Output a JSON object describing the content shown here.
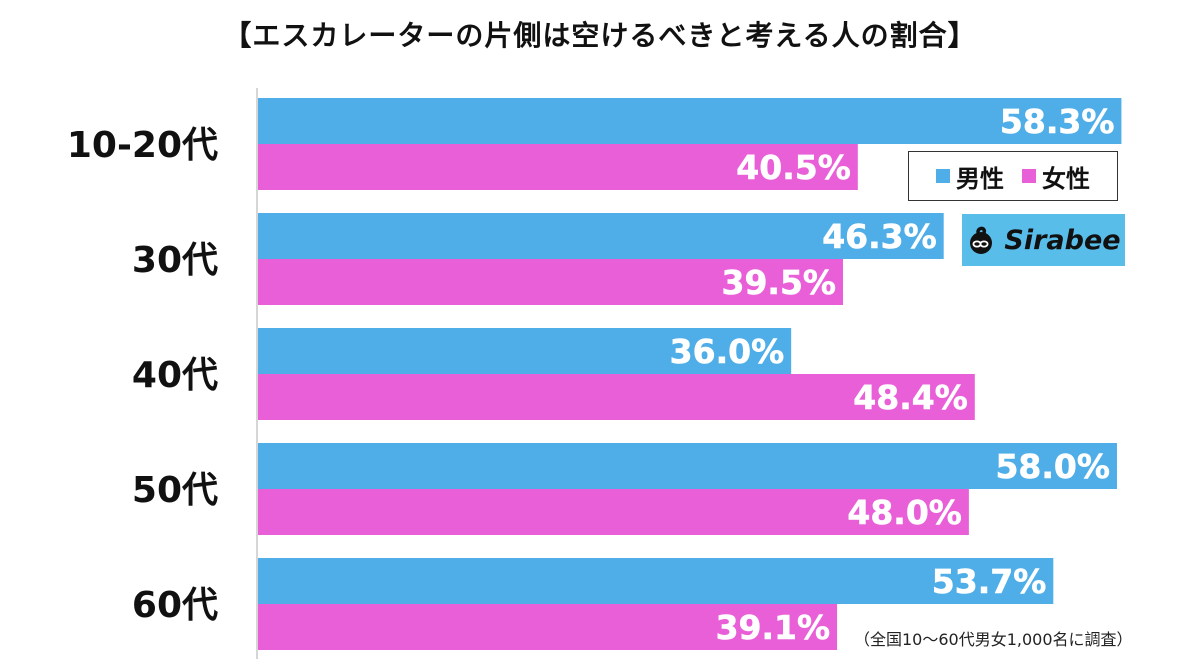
{
  "title": "【エスカレーターの片側は空けるべきと考える人の割合】",
  "legend": {
    "male_label": "男性",
    "female_label": "女性"
  },
  "logo": {
    "text": "Sirabee"
  },
  "note": "（全国10〜60代男女1,000名に調査）",
  "colors": {
    "male": "#4faee8",
    "female": "#e85fd8",
    "logo_bg": "#58bde9"
  },
  "chart_data": {
    "type": "bar",
    "orientation": "horizontal",
    "title": "【エスカレーターの片側は空けるべきと考える人の割合】",
    "categories": [
      "10-20代",
      "30代",
      "40代",
      "50代",
      "60代"
    ],
    "series": [
      {
        "name": "男性",
        "values": [
          58.3,
          46.3,
          36.0,
          58.0,
          53.7
        ]
      },
      {
        "name": "女性",
        "values": [
          40.5,
          39.5,
          48.4,
          48.0,
          39.1
        ]
      }
    ],
    "value_labels": {
      "男性": [
        "58.3%",
        "46.3%",
        "36.0%",
        "58.0%",
        "53.7%"
      ],
      "女性": [
        "40.5%",
        "39.5%",
        "48.4%",
        "48.0%",
        "39.1%"
      ]
    },
    "unit": "%",
    "legend_position": "right",
    "grid": false
  }
}
